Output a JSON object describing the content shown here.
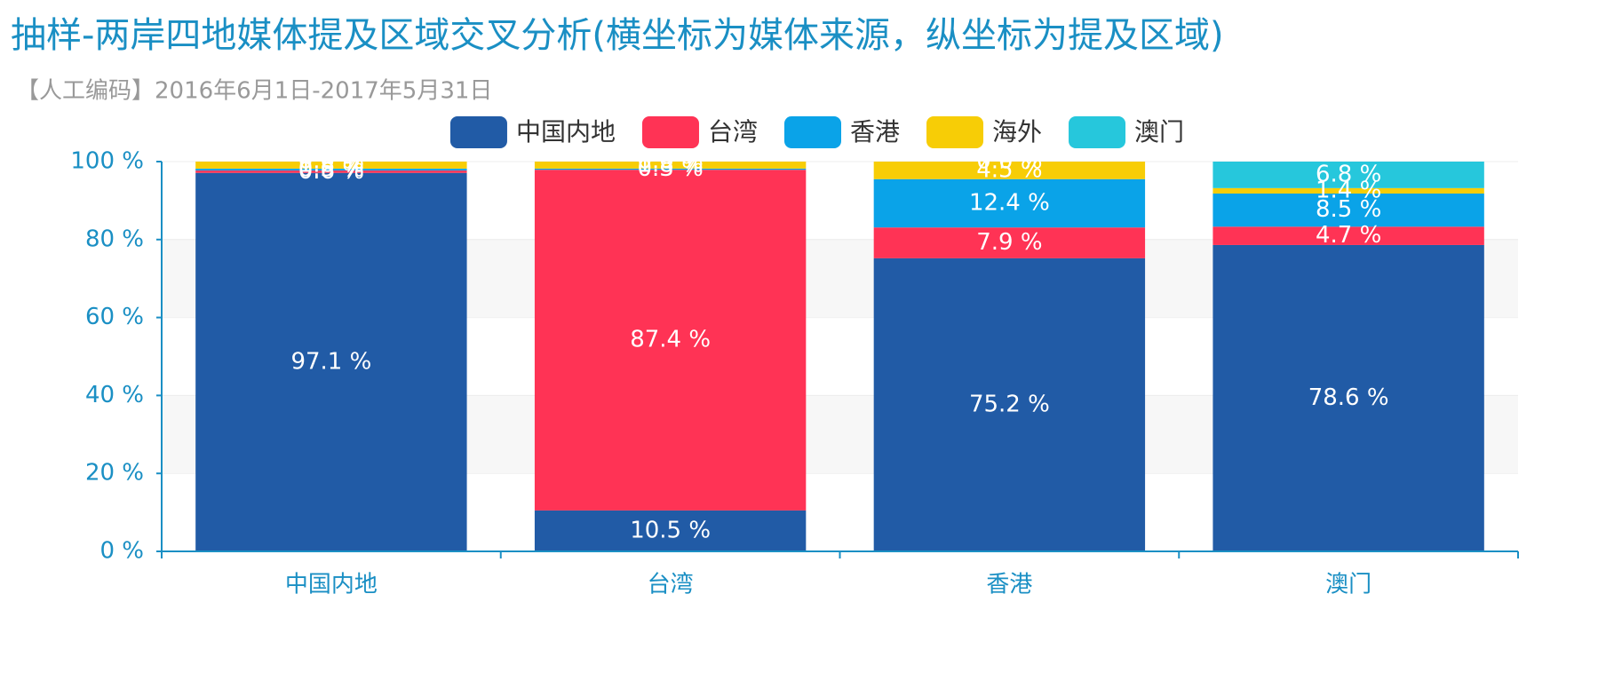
{
  "chart_data": {
    "type": "stacked_bar",
    "title": "抽样-两岸四地媒体提及区域交叉分析(横坐标为媒体来源，纵坐标为提及区域)",
    "subtitle": "【人工编码】2016年6月1日-2017年5月31日",
    "categories": [
      "中国内地",
      "台湾",
      "香港",
      "澳门"
    ],
    "series": [
      {
        "name": "中国内地",
        "color": "#215ba6",
        "values": [
          97.1,
          10.5,
          75.2,
          78.6
        ],
        "value_labels": [
          "97.1 %",
          "10.5 %",
          "75.2 %",
          "78.6 %"
        ]
      },
      {
        "name": "台湾",
        "color": "#ff3355",
        "values": [
          0.6,
          87.4,
          7.9,
          4.7
        ],
        "value_labels": [
          "0.6 %",
          "87.4 %",
          "7.9 %",
          "4.7 %"
        ]
      },
      {
        "name": "香港",
        "color": "#0aa3e8",
        "values": [
          0.5,
          0.3,
          12.4,
          8.5
        ],
        "value_labels": [
          "0.5 %",
          "0.3 %",
          "12.4 %",
          "8.5 %"
        ]
      },
      {
        "name": "海外",
        "color": "#f7cd06",
        "values": [
          1.8,
          1.8,
          4.5,
          1.4
        ],
        "value_labels": [
          "1.8 %",
          "1.8 %",
          "4.5 %",
          "1.4 %"
        ]
      },
      {
        "name": "澳门",
        "color": "#26c7dc",
        "values": [
          0.0,
          0.0,
          0.0,
          6.8
        ],
        "value_labels": [
          "0.0 %",
          "0.0 %",
          "0.0 %",
          "6.8 %"
        ]
      }
    ],
    "ylim": [
      0,
      100
    ],
    "yticks": [
      {
        "value": 0,
        "label": "0 %"
      },
      {
        "value": 20,
        "label": "20 %"
      },
      {
        "value": 40,
        "label": "40 %"
      },
      {
        "value": 60,
        "label": "60 %"
      },
      {
        "value": 80,
        "label": "80 %"
      },
      {
        "value": 100,
        "label": "100 %"
      }
    ],
    "grid": true,
    "split_area": true,
    "legend": "top"
  }
}
